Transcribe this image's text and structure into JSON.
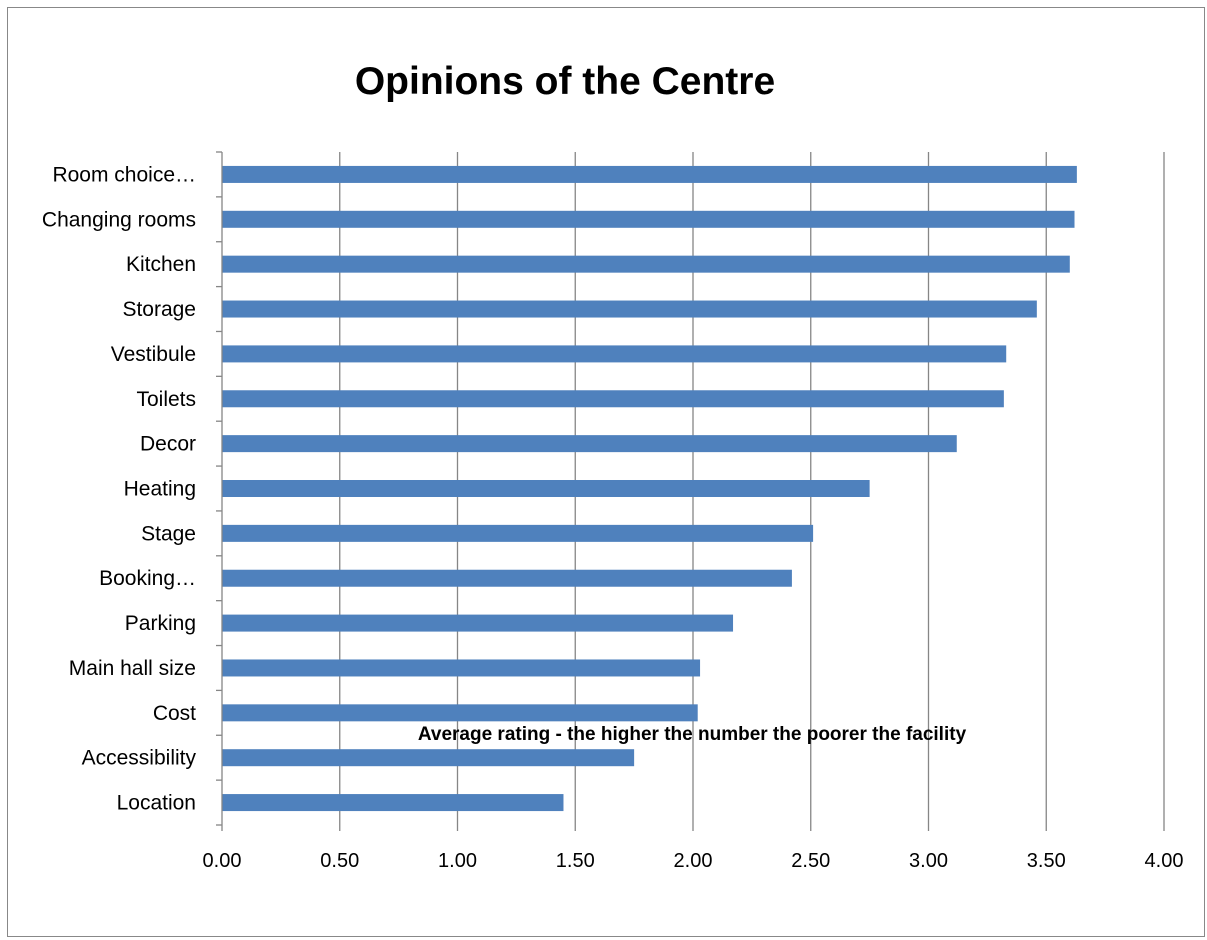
{
  "chart_data": {
    "type": "bar",
    "orientation": "horizontal",
    "title": "Opinions of the Centre",
    "xlabel": "Average rating - the higher the number the poorer the facility",
    "ylabel": "",
    "categories": [
      "Room choice…",
      "Changing rooms",
      "Kitchen",
      "Storage",
      "Vestibule",
      "Toilets",
      "Decor",
      "Heating",
      "Stage",
      "Booking…",
      "Parking",
      "Main hall size",
      "Cost",
      "Accessibility",
      "Location"
    ],
    "values": [
      3.63,
      3.62,
      3.6,
      3.46,
      3.33,
      3.32,
      3.12,
      2.75,
      2.51,
      2.42,
      2.17,
      2.03,
      2.02,
      1.75,
      1.45
    ],
    "xlim": [
      0,
      4
    ],
    "xticks": [
      "0.00",
      "0.50",
      "1.00",
      "1.50",
      "2.00",
      "2.50",
      "3.00",
      "3.50",
      "4.00"
    ],
    "grid": true,
    "legend": "none",
    "bar_color": "#4f81bd",
    "grid_color": "#868686"
  }
}
